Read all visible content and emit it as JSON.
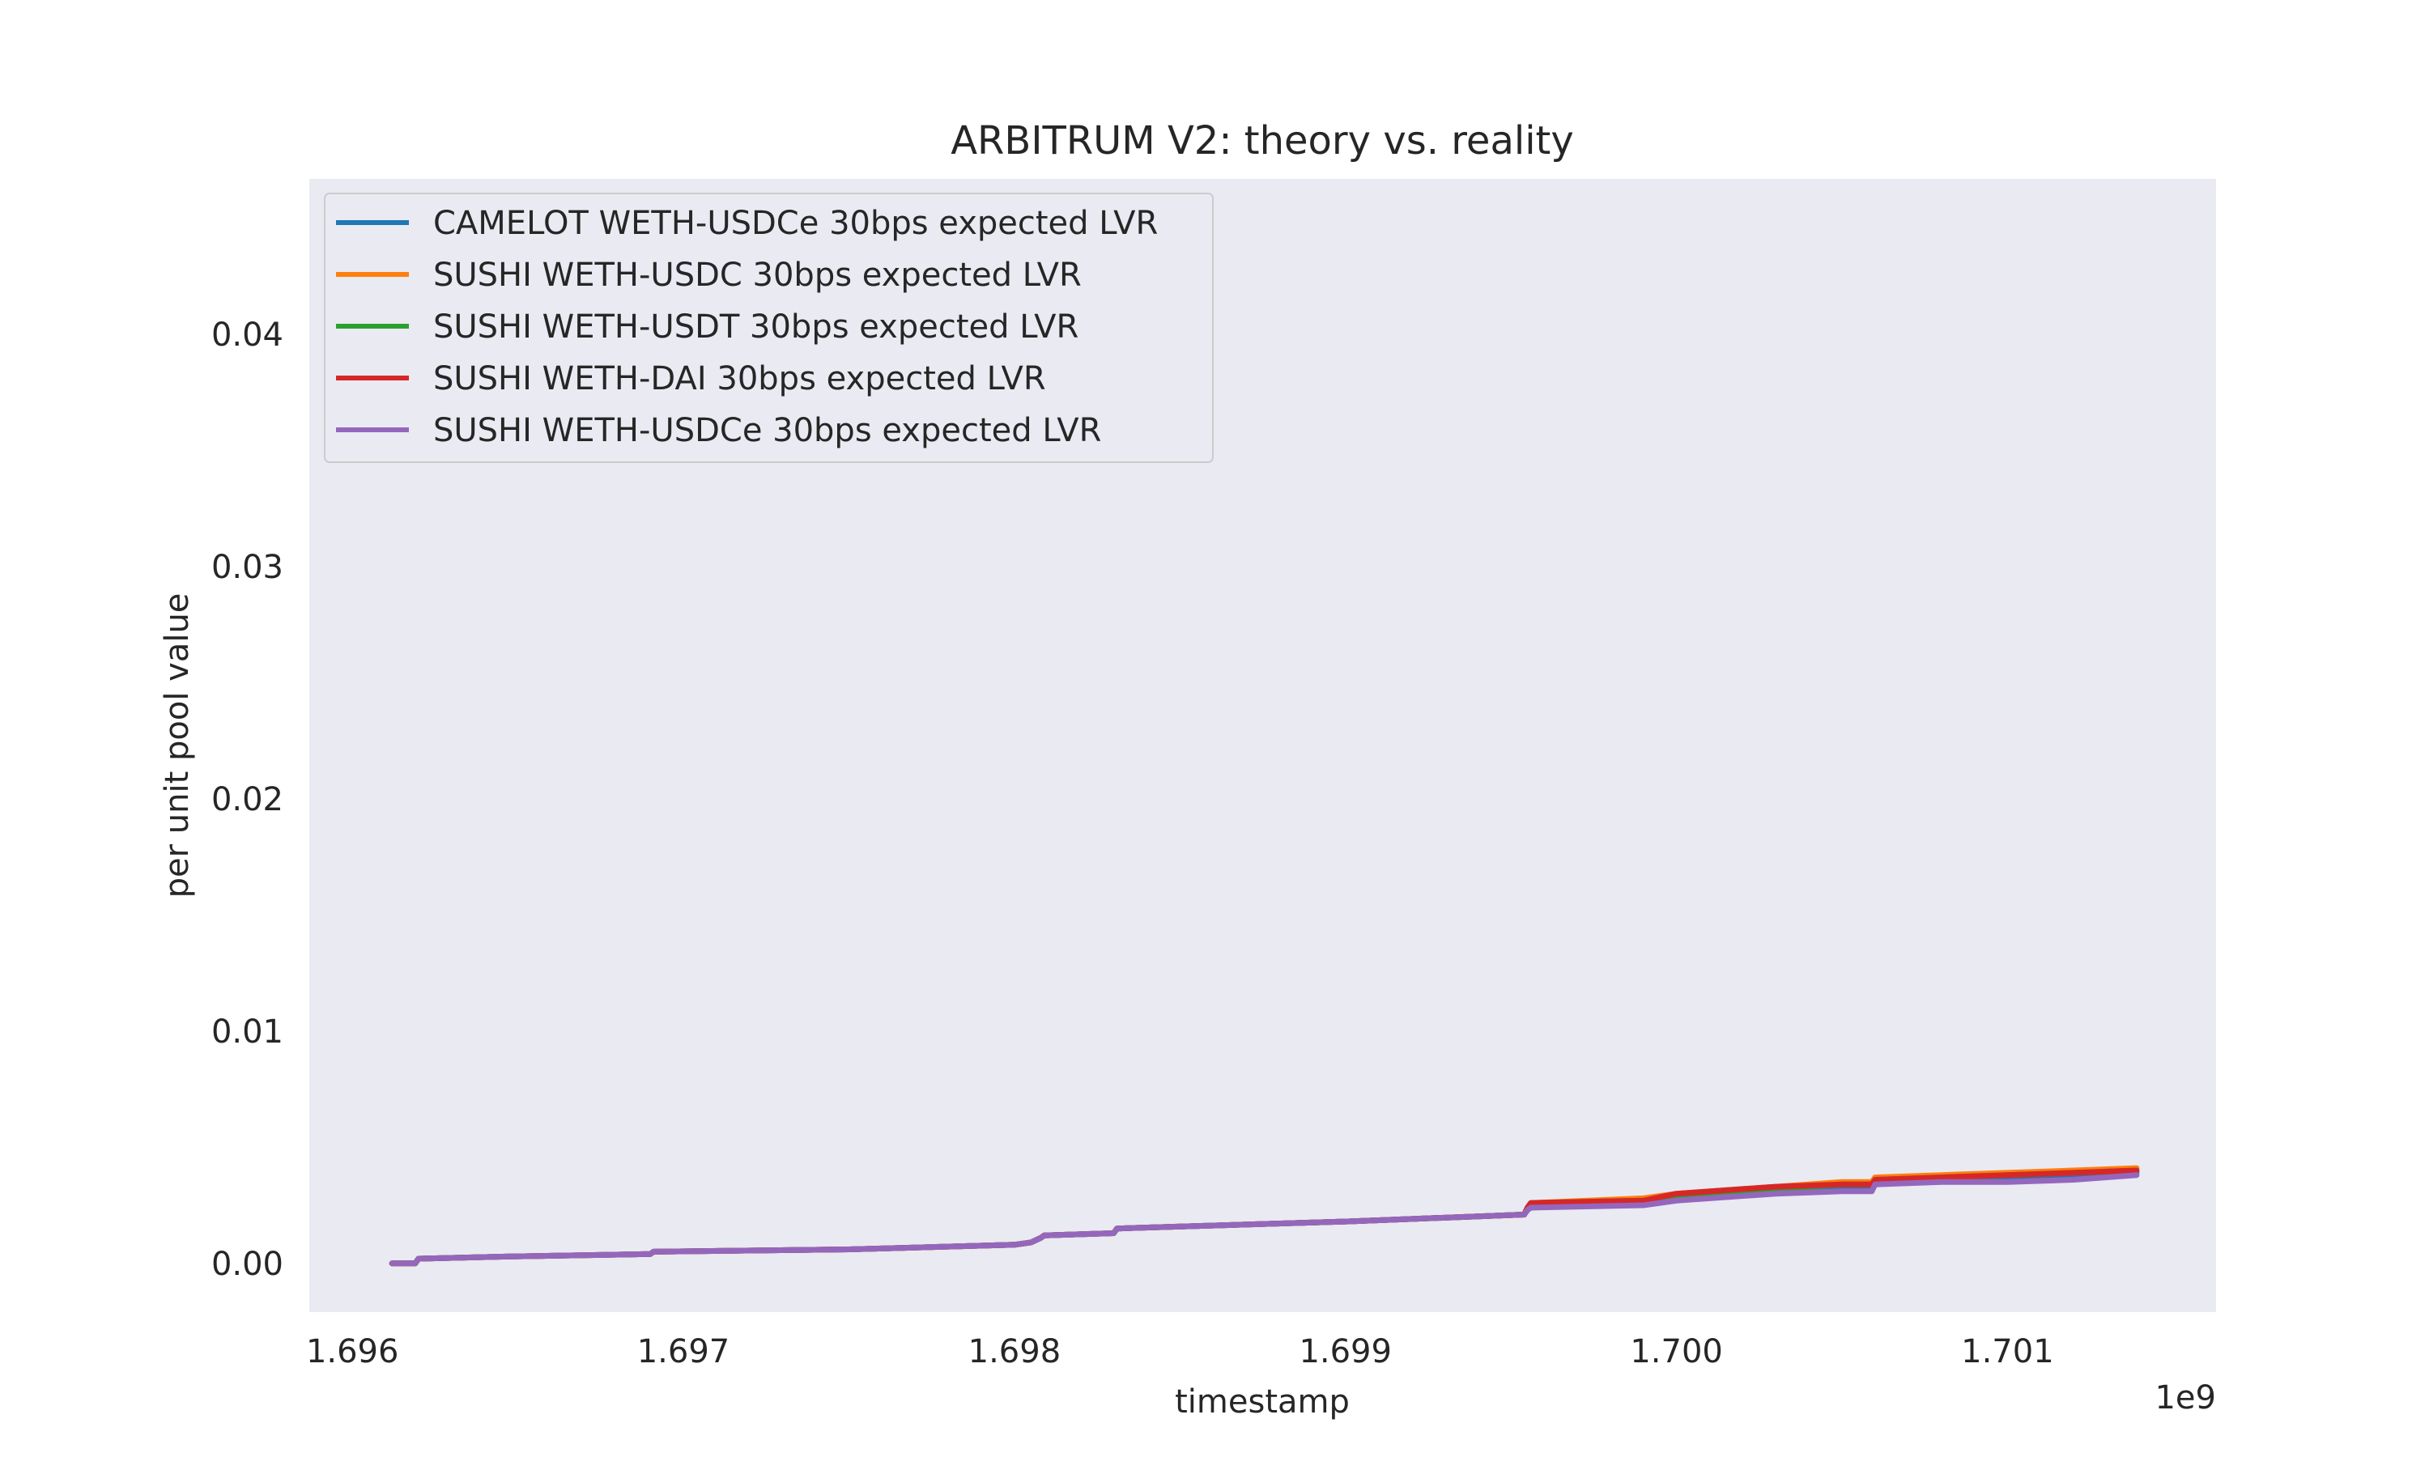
{
  "chart_data": {
    "type": "line",
    "title": "ARBITRUM V2: theory vs. reality",
    "xlabel": "timestamp",
    "ylabel": "per unit pool value",
    "x_offset_label": "1e9",
    "xlim": [
      1.69587,
      1.70163
    ],
    "ylim": [
      -0.0021,
      0.0467
    ],
    "x_ticks": [
      1.696,
      1.697,
      1.698,
      1.699,
      1.7,
      1.701
    ],
    "x_tick_labels": [
      "1.696",
      "1.697",
      "1.698",
      "1.699",
      "1.700",
      "1.701"
    ],
    "y_ticks": [
      0.0,
      0.01,
      0.02,
      0.03,
      0.04
    ],
    "y_tick_labels": [
      "0.00",
      "0.01",
      "0.02",
      "0.03",
      "0.04"
    ],
    "grid": false,
    "legend_position": "top-left",
    "background_color": "#eaeaf2",
    "series": [
      {
        "name": "CAMELOT WETH-USDCe 30bps expected LVR",
        "color": "#1f77b4",
        "x": [
          1.69612,
          1.69619,
          1.6962,
          1.6965,
          1.6969,
          1.69691,
          1.6975,
          1.698,
          1.69805,
          1.69808,
          1.69809,
          1.6983,
          1.69831,
          1.699,
          1.69954,
          1.69955,
          1.69956,
          1.6999,
          1.7,
          1.7003,
          1.7005,
          1.70059,
          1.7006,
          1.7008,
          1.701,
          1.7012,
          1.70139
        ],
        "y": [
          0.0,
          0.0,
          0.0002,
          0.0003,
          0.0004,
          0.0005,
          0.0006,
          0.0008,
          0.0009,
          0.0011,
          0.0012,
          0.0013,
          0.0015,
          0.0018,
          0.0021,
          0.0023,
          0.0024,
          0.0026,
          0.0028,
          0.0031,
          0.0033,
          0.0033,
          0.0035,
          0.0036,
          0.0037,
          0.0038,
          0.0039
        ]
      },
      {
        "name": "SUSHI WETH-USDC 30bps expected LVR",
        "color": "#ff7f0e",
        "x": [
          1.69612,
          1.69619,
          1.6962,
          1.6965,
          1.6969,
          1.69691,
          1.6975,
          1.698,
          1.69805,
          1.69808,
          1.69809,
          1.6983,
          1.69831,
          1.699,
          1.69954,
          1.69955,
          1.69956,
          1.6999,
          1.7,
          1.7003,
          1.7005,
          1.70059,
          1.7006,
          1.7008,
          1.701,
          1.7012,
          1.70139
        ],
        "y": [
          0.0,
          0.0,
          0.0002,
          0.0003,
          0.0004,
          0.0005,
          0.0006,
          0.0008,
          0.0009,
          0.0011,
          0.0012,
          0.0013,
          0.0015,
          0.0018,
          0.0021,
          0.0024,
          0.0026,
          0.0028,
          0.003,
          0.0033,
          0.0035,
          0.0035,
          0.0037,
          0.0038,
          0.0039,
          0.004,
          0.0041
        ]
      },
      {
        "name": "SUSHI WETH-USDT 30bps expected LVR",
        "color": "#2ca02c",
        "x": [
          1.69612,
          1.69619,
          1.6962,
          1.6965,
          1.6969,
          1.69691,
          1.6975,
          1.698,
          1.69805,
          1.69808,
          1.69809,
          1.6983,
          1.69831,
          1.699,
          1.69954,
          1.69955,
          1.69956,
          1.6999,
          1.7,
          1.7003,
          1.7005,
          1.70059,
          1.7006,
          1.7008,
          1.701,
          1.7012,
          1.70139
        ],
        "y": [
          0.0,
          0.0,
          0.0002,
          0.0003,
          0.0004,
          0.0005,
          0.0006,
          0.0008,
          0.0009,
          0.0011,
          0.0012,
          0.0013,
          0.0015,
          0.0018,
          0.0021,
          0.0024,
          0.0026,
          0.0027,
          0.0029,
          0.0032,
          0.0034,
          0.0034,
          0.0036,
          0.0037,
          0.0038,
          0.0039,
          0.004
        ]
      },
      {
        "name": "SUSHI WETH-DAI 30bps expected LVR",
        "color": "#d62728",
        "x": [
          1.69612,
          1.69619,
          1.6962,
          1.6965,
          1.6969,
          1.69691,
          1.6975,
          1.698,
          1.69805,
          1.69808,
          1.69809,
          1.6983,
          1.69831,
          1.699,
          1.69954,
          1.69955,
          1.69956,
          1.6999,
          1.7,
          1.7003,
          1.7005,
          1.70059,
          1.7006,
          1.7008,
          1.701,
          1.7012,
          1.70139
        ],
        "y": [
          0.0,
          0.0,
          0.0002,
          0.0003,
          0.0004,
          0.0005,
          0.0006,
          0.0008,
          0.0009,
          0.0011,
          0.0012,
          0.0013,
          0.0015,
          0.0018,
          0.0021,
          0.0024,
          0.0026,
          0.0027,
          0.003,
          0.0033,
          0.0034,
          0.0034,
          0.0036,
          0.0037,
          0.0038,
          0.0039,
          0.004
        ]
      },
      {
        "name": "SUSHI WETH-USDCe 30bps expected LVR",
        "color": "#9467bd",
        "x": [
          1.69612,
          1.69619,
          1.6962,
          1.6965,
          1.6969,
          1.69691,
          1.6975,
          1.698,
          1.69805,
          1.69808,
          1.69809,
          1.6983,
          1.69831,
          1.699,
          1.69954,
          1.69955,
          1.69956,
          1.6999,
          1.7,
          1.7003,
          1.7005,
          1.70059,
          1.7006,
          1.7008,
          1.701,
          1.7012,
          1.70139
        ],
        "y": [
          0.0,
          0.0,
          0.0002,
          0.0003,
          0.0004,
          0.0005,
          0.0006,
          0.0008,
          0.0009,
          0.0011,
          0.0012,
          0.0013,
          0.0015,
          0.0018,
          0.0021,
          0.0023,
          0.0024,
          0.0025,
          0.0027,
          0.003,
          0.0031,
          0.0031,
          0.0034,
          0.0035,
          0.0035,
          0.0036,
          0.0038
        ]
      }
    ]
  }
}
